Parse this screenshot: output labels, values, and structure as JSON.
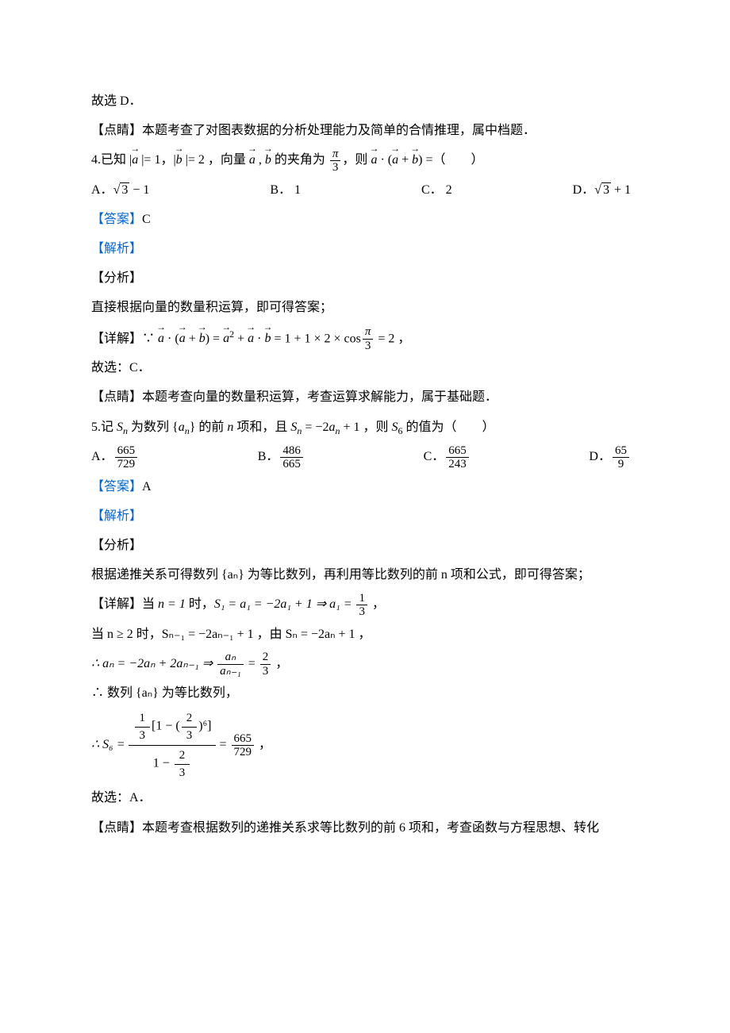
{
  "l1": "故选 D．",
  "l2": "【点睛】本题考查了对图表数据的分析处理能力及简单的合情推理，属中档题．",
  "q4_prefix": "4.已知 |",
  "q4_a": "a",
  "q4_mid1": " |= 1，|",
  "q4_b": "b",
  "q4_mid2": " |= 2 ，向量 ",
  "q4_mid3": " , ",
  "q4_mid4": " 的夹角为",
  "q4_pi": "π",
  "q4_3": "3",
  "q4_mid5": "，则 ",
  "q4_mid6": " · (",
  "q4_mid7": " + ",
  "q4_mid8": ") =（　　）",
  "q4A_label": "A．",
  "q4A_val": "3",
  "q4A_suffix": " − 1",
  "q4B": "B．  1",
  "q4C": "C．  2",
  "q4D_label": "D．",
  "q4D_val": "3",
  "q4D_suffix": " + 1",
  "ans_label": "【答案】",
  "ans4": "C",
  "jiexi": "【解析】",
  "fenxi": "【分析】",
  "q4_fenxi": "直接根据向量的数量积运算，即可得答案；",
  "xiangjie": "【详解】",
  "q4_xj_1": "∵ ",
  "q4_xj_2": " · (",
  "q4_xj_3": " + ",
  "q4_xj_4": ") = ",
  "q4_xj_5": " + ",
  "q4_xj_6": " · ",
  "q4_xj_7": " = 1 + 1 × 2 × cos",
  "q4_xj_8": " = 2 ，",
  "q4_guxuan": "故选：C．",
  "q4_dianjing": "【点睛】本题考查向量的数量积运算，考查运算求解能力，属于基础题．",
  "q5_prefix": "5.记 ",
  "q5_Sn": "S",
  "q5_n": "n",
  "q5_mid1": " 为数列 {",
  "q5_an": "a",
  "q5_mid2": "} 的前 ",
  "q5_nword": "n",
  "q5_mid3": " 项和，且 ",
  "q5_mid4": " = −2",
  "q5_mid5": " + 1 ，则 ",
  "q5_S6": "S",
  "q5_6": "6",
  "q5_mid6": " 的值为（　　）",
  "q5A_label": "A．",
  "q5A_num": "665",
  "q5A_den": "729",
  "q5B_label": "B．",
  "q5B_num": "486",
  "q5B_den": "665",
  "q5C_label": "C．",
  "q5C_num": "665",
  "q5C_den": "243",
  "q5D_label": "D．",
  "q5D_num": "65",
  "q5D_den": "9",
  "ans5": "A",
  "q5_fenxi": "根据递推关系可得数列 {aₙ} 为等比数列，再利用等比数列的前 n 项和公式，即可得答案；",
  "q5_xj1_pre": "当 ",
  "q5_xj1_n1": "n = 1",
  "q5_xj1_mid": " 时，",
  "q5_xj1_eq": "S₁ = a₁ = −2a₁ + 1 ⇒ a₁ = ",
  "q5_xj1_num": "1",
  "q5_xj1_den": "3",
  "q5_xj1_end": " ，",
  "q5_xj2": "当 n ≥ 2 时，Sₙ₋₁ = −2aₙ₋₁ + 1 ，由 Sₙ = −2aₙ + 1 ，",
  "q5_xj3_pre": "∴ aₙ = −2aₙ + 2aₙ₋₁ ⇒ ",
  "q5_xj3_num": "aₙ",
  "q5_xj3_den": "aₙ₋₁",
  "q5_xj3_mid": " = ",
  "q5_xj3_num2": "2",
  "q5_xj3_den2": "3",
  "q5_xj3_end": " ，",
  "q5_xj4": "∴ 数列 {aₙ} 为等比数列，",
  "q5_xj5_pre": "∴ S₆ = ",
  "q5_xj5_bignum_a": "1",
  "q5_xj5_bignum_b": "3",
  "q5_xj5_bignum_c": "[1 − (",
  "q5_xj5_bignum_d": "2",
  "q5_xj5_bignum_e": "3",
  "q5_xj5_bignum_f": ")⁶]",
  "q5_xj5_bigden_a": "1 − ",
  "q5_xj5_bigden_b": "2",
  "q5_xj5_bigden_c": "3",
  "q5_xj5_mid": " = ",
  "q5_xj5_num": "665",
  "q5_xj5_den": "729",
  "q5_xj5_end": " ，",
  "q5_guxuan": "故选：A．",
  "q5_dianjing": "【点睛】本题考查根据数列的递推关系求等比数列的前 6 项和，考查函数与方程思想、转化"
}
